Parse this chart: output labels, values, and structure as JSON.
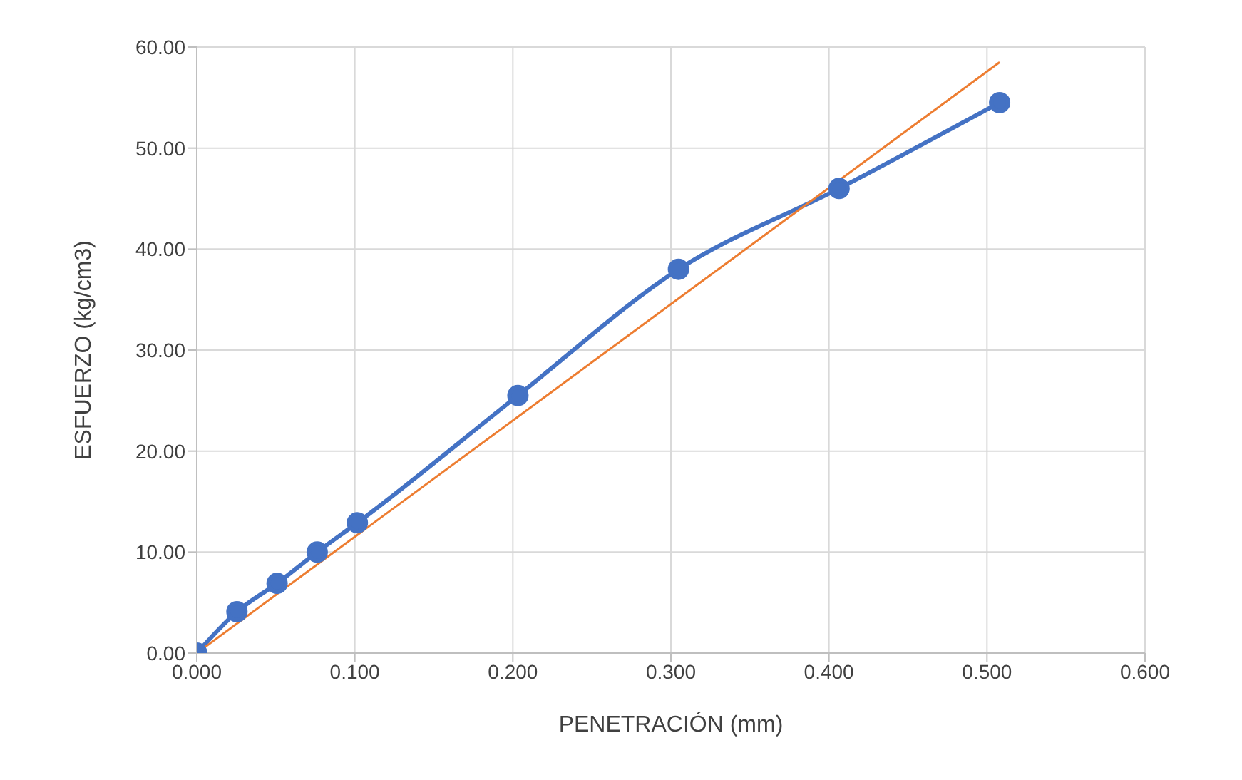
{
  "chart_data": {
    "type": "line",
    "xlabel": "PENETRACIÓN (mm)",
    "ylabel": "ESFUERZO (kg/cm3)",
    "x": [
      0,
      0.0254,
      0.0508,
      0.0762,
      0.1016,
      0.2032,
      0.3048,
      0.4064,
      0.508
    ],
    "series": [
      {
        "color": "#4472c4",
        "values": [
          0,
          4.1,
          6.9,
          10.0,
          12.9,
          25.5,
          38.0,
          46.0,
          54.5
        ],
        "marker": "circle"
      },
      {
        "type": "line",
        "color": "#ed7d31",
        "x": [
          0,
          0.508
        ],
        "values": [
          0,
          58.5
        ],
        "marker": "none"
      }
    ],
    "xlim": [
      0,
      0.6
    ],
    "xticks": [
      {
        "value": 0,
        "label": "0.000"
      },
      {
        "value": 0.1,
        "label": "0.100"
      },
      {
        "value": 0.2,
        "label": "0.200"
      },
      {
        "value": 0.3,
        "label": "0.300"
      },
      {
        "value": 0.4,
        "label": "0.400"
      },
      {
        "value": 0.5,
        "label": "0.500"
      },
      {
        "value": 0.6,
        "label": "0.600"
      }
    ],
    "ylim": [
      0,
      60
    ],
    "yticks": [
      {
        "value": 0,
        "label": "0.00"
      },
      {
        "value": 10,
        "label": "10.00"
      },
      {
        "value": 20,
        "label": "20.00"
      },
      {
        "value": 30,
        "label": "30.00"
      },
      {
        "value": 40,
        "label": "40.00"
      },
      {
        "value": 50,
        "label": "50.00"
      },
      {
        "value": 60,
        "label": "60.00"
      }
    ],
    "grid": true
  }
}
